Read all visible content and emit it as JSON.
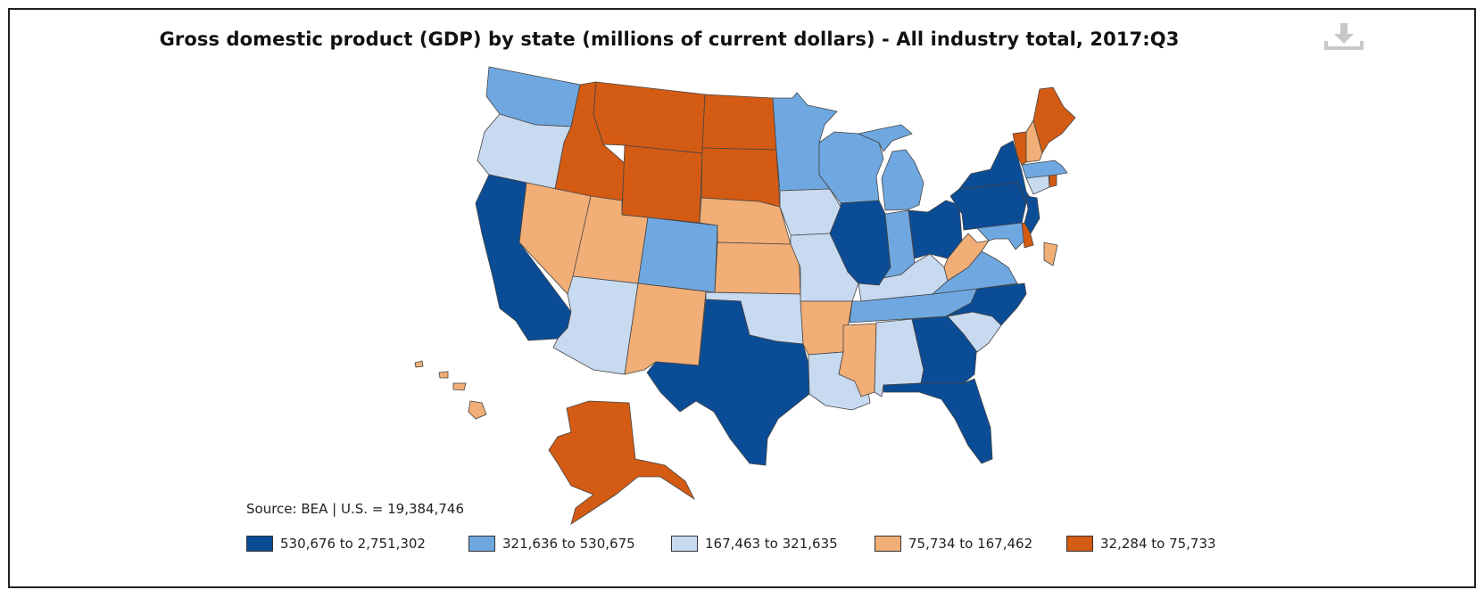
{
  "title": "Gross domestic product (GDP) by state (millions of current dollars) - All industry total, 2017:Q3",
  "source": "Source: BEA | U.S. = 19,384,746",
  "download_icon": "download-icon",
  "colors": {
    "c1": "#0b4c96",
    "c2": "#6fa8e0",
    "c3": "#c8daf0",
    "c4": "#f1ae77",
    "c5": "#d45b13"
  },
  "legend": [
    {
      "label": "530,676 to 2,751,302",
      "class": "c1"
    },
    {
      "label": "321,636 to 530,675",
      "class": "c2"
    },
    {
      "label": "167,463 to 321,635",
      "class": "c3"
    },
    {
      "label": "75,734 to 167,462",
      "class": "c4"
    },
    {
      "label": "32,284 to 75,733",
      "class": "c5"
    }
  ],
  "states": [
    {
      "id": "WA",
      "class": "c2"
    },
    {
      "id": "OR",
      "class": "c3"
    },
    {
      "id": "CA",
      "class": "c1"
    },
    {
      "id": "ID",
      "class": "c5"
    },
    {
      "id": "NV",
      "class": "c4"
    },
    {
      "id": "MT",
      "class": "c5"
    },
    {
      "id": "WY",
      "class": "c5"
    },
    {
      "id": "UT",
      "class": "c4"
    },
    {
      "id": "AZ",
      "class": "c3"
    },
    {
      "id": "CO",
      "class": "c2"
    },
    {
      "id": "NM",
      "class": "c4"
    },
    {
      "id": "ND",
      "class": "c5"
    },
    {
      "id": "SD",
      "class": "c5"
    },
    {
      "id": "NE",
      "class": "c4"
    },
    {
      "id": "KS",
      "class": "c4"
    },
    {
      "id": "OK",
      "class": "c3"
    },
    {
      "id": "TX",
      "class": "c1"
    },
    {
      "id": "MN",
      "class": "c2"
    },
    {
      "id": "IA",
      "class": "c3"
    },
    {
      "id": "MO",
      "class": "c3"
    },
    {
      "id": "AR",
      "class": "c4"
    },
    {
      "id": "LA",
      "class": "c3"
    },
    {
      "id": "WI",
      "class": "c2"
    },
    {
      "id": "IL",
      "class": "c1"
    },
    {
      "id": "MS",
      "class": "c4"
    },
    {
      "id": "MI",
      "class": "c2"
    },
    {
      "id": "IN",
      "class": "c2"
    },
    {
      "id": "KY",
      "class": "c3"
    },
    {
      "id": "TN",
      "class": "c2"
    },
    {
      "id": "AL",
      "class": "c3"
    },
    {
      "id": "OH",
      "class": "c1"
    },
    {
      "id": "GA",
      "class": "c1"
    },
    {
      "id": "FL",
      "class": "c1"
    },
    {
      "id": "SC",
      "class": "c3"
    },
    {
      "id": "NC",
      "class": "c1"
    },
    {
      "id": "VA",
      "class": "c2"
    },
    {
      "id": "WV",
      "class": "c4"
    },
    {
      "id": "PA",
      "class": "c1"
    },
    {
      "id": "NY",
      "class": "c1"
    },
    {
      "id": "MD",
      "class": "c2"
    },
    {
      "id": "DE",
      "class": "c5"
    },
    {
      "id": "NJ",
      "class": "c1"
    },
    {
      "id": "CT",
      "class": "c3"
    },
    {
      "id": "RI",
      "class": "c5"
    },
    {
      "id": "MA",
      "class": "c2"
    },
    {
      "id": "VT",
      "class": "c5"
    },
    {
      "id": "NH",
      "class": "c4"
    },
    {
      "id": "ME",
      "class": "c5"
    },
    {
      "id": "DC",
      "class": "c4"
    },
    {
      "id": "AK",
      "class": "c5"
    },
    {
      "id": "HI",
      "class": "c4"
    }
  ]
}
